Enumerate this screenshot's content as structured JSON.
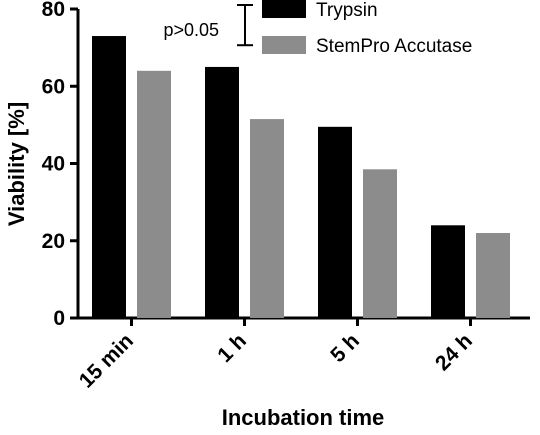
{
  "chart_data": {
    "type": "bar",
    "title": "",
    "xlabel": "Incubation time",
    "ylabel": "Viability [%]",
    "ylim": [
      0,
      80
    ],
    "yticks": [
      0,
      20,
      40,
      60,
      80
    ],
    "categories": [
      "15 min",
      "1 h",
      "5 h",
      "24 h"
    ],
    "series": [
      {
        "name": "Trypsin",
        "color": "#000000",
        "values": [
          73,
          65,
          49.5,
          24
        ]
      },
      {
        "name": "StemPro Accutase",
        "color": "#8c8c8c",
        "values": [
          64,
          51.5,
          38.5,
          22
        ]
      }
    ],
    "legend_position": "top-right",
    "grid": false,
    "annotation": {
      "text": "p>0.05",
      "category": "1 h",
      "range": [
        67,
        80
      ]
    }
  }
}
